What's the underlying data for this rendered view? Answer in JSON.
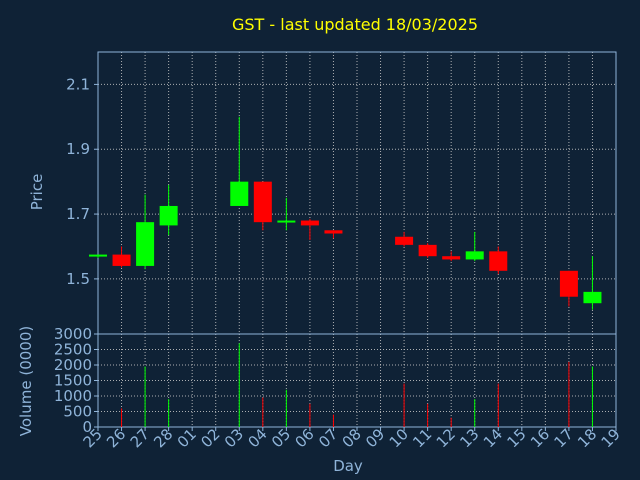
{
  "chart_data": [
    {
      "type": "candlestick",
      "title": "GST - last updated 18/03/2025",
      "ylabel": "Price",
      "ylim": [
        1.33,
        2.2
      ],
      "yticks": [
        "1.5",
        "1.7",
        "1.9",
        "2.1"
      ],
      "ytick_values": [
        1.5,
        1.7,
        1.9,
        2.1
      ],
      "x": [
        "25",
        "26",
        "27",
        "28",
        "01",
        "02",
        "03",
        "04",
        "05",
        "06",
        "07",
        "08",
        "09",
        "10",
        "11",
        "12",
        "13",
        "14",
        "15",
        "16",
        "17",
        "18",
        "19"
      ],
      "candles": [
        {
          "x": "25",
          "open": 1.57,
          "high": 1.575,
          "low": 1.565,
          "close": 1.575
        },
        {
          "x": "26",
          "open": 1.575,
          "high": 1.6,
          "low": 1.535,
          "close": 1.54
        },
        {
          "x": "27",
          "open": 1.54,
          "high": 1.76,
          "low": 1.53,
          "close": 1.675
        },
        {
          "x": "28",
          "open": 1.665,
          "high": 1.79,
          "low": 1.635,
          "close": 1.725
        },
        {
          "x": "03",
          "open": 1.725,
          "high": 2.0,
          "low": 1.725,
          "close": 1.8
        },
        {
          "x": "04",
          "open": 1.8,
          "high": 1.8,
          "low": 1.65,
          "close": 1.675
        },
        {
          "x": "05",
          "open": 1.675,
          "high": 1.75,
          "low": 1.65,
          "close": 1.68
        },
        {
          "x": "06",
          "open": 1.68,
          "high": 1.685,
          "low": 1.62,
          "close": 1.665
        },
        {
          "x": "07",
          "open": 1.65,
          "high": 1.65,
          "low": 1.625,
          "close": 1.64
        },
        {
          "x": "10",
          "open": 1.63,
          "high": 1.645,
          "low": 1.6,
          "close": 1.605
        },
        {
          "x": "11",
          "open": 1.605,
          "high": 1.61,
          "low": 1.565,
          "close": 1.57
        },
        {
          "x": "12",
          "open": 1.57,
          "high": 1.585,
          "low": 1.555,
          "close": 1.56
        },
        {
          "x": "13",
          "open": 1.56,
          "high": 1.645,
          "low": 1.555,
          "close": 1.585
        },
        {
          "x": "14",
          "open": 1.585,
          "high": 1.6,
          "low": 1.515,
          "close": 1.525
        },
        {
          "x": "17",
          "open": 1.525,
          "high": 1.525,
          "low": 1.415,
          "close": 1.445
        },
        {
          "x": "18",
          "open": 1.425,
          "high": 1.57,
          "low": 1.405,
          "close": 1.46
        }
      ],
      "colors": {
        "up": "#00ff00",
        "down": "#ff0000",
        "title": "#ffff00",
        "axis_text": "#8fb4d9",
        "grid": "#c8c8c8",
        "background": "#0f2236"
      },
      "grid": true
    },
    {
      "type": "bar",
      "xlabel": "Day",
      "ylabel": "Volume (0000)",
      "ylim": [
        0,
        3000
      ],
      "yticks": [
        "0",
        "500",
        "1000",
        "1500",
        "2000",
        "2500",
        "3000"
      ],
      "ytick_values": [
        0,
        500,
        1000,
        1500,
        2000,
        2500,
        3000
      ],
      "volumes": [
        {
          "x": "26",
          "value": 600,
          "dir": "down"
        },
        {
          "x": "27",
          "value": 1950,
          "dir": "up"
        },
        {
          "x": "28",
          "value": 900,
          "dir": "up"
        },
        {
          "x": "03",
          "value": 2700,
          "dir": "up"
        },
        {
          "x": "04",
          "value": 950,
          "dir": "down"
        },
        {
          "x": "05",
          "value": 1200,
          "dir": "up"
        },
        {
          "x": "06",
          "value": 750,
          "dir": "down"
        },
        {
          "x": "07",
          "value": 400,
          "dir": "down"
        },
        {
          "x": "10",
          "value": 1400,
          "dir": "down"
        },
        {
          "x": "11",
          "value": 750,
          "dir": "down"
        },
        {
          "x": "12",
          "value": 300,
          "dir": "down"
        },
        {
          "x": "13",
          "value": 900,
          "dir": "up"
        },
        {
          "x": "14",
          "value": 1400,
          "dir": "down"
        },
        {
          "x": "17",
          "value": 2100,
          "dir": "down"
        },
        {
          "x": "18",
          "value": 1950,
          "dir": "up"
        }
      ],
      "grid": true
    }
  ]
}
